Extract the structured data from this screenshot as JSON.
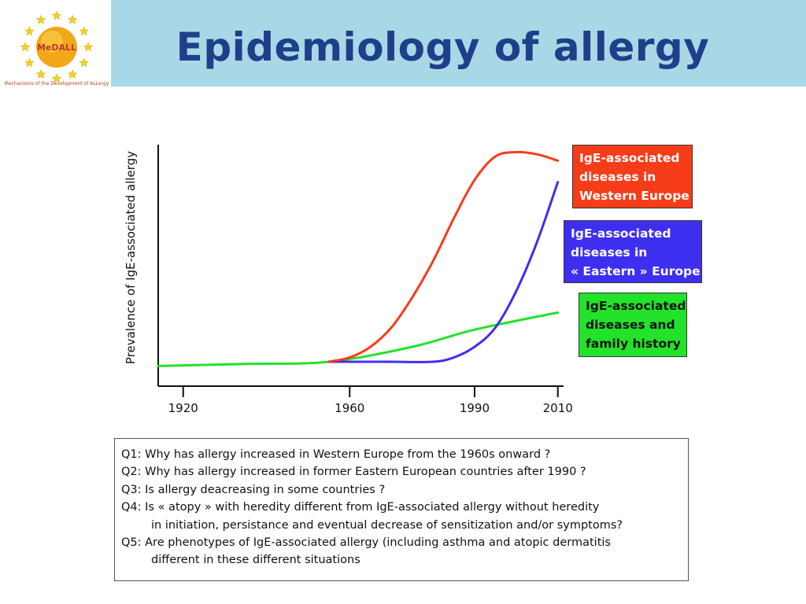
{
  "title": "Epidemiology of allergy",
  "logo": {
    "name": "MeDALL",
    "caption": "Mechanisms of the Development of ALLergy",
    "colors": {
      "stars": "#f2d31b",
      "sun": "#f0a818",
      "text": "#c0392b"
    }
  },
  "chart_data": {
    "type": "line",
    "ylabel": "Prevalence of IgE-associated allergy",
    "xlabel": "",
    "xticks": [
      1920,
      1960,
      1990,
      2010
    ],
    "xlim": [
      1914,
      2011
    ],
    "ylim": [
      0,
      100
    ],
    "series": [
      {
        "name": "IgE-associated diseases in Western Europe",
        "color": "#f73c1a",
        "x": [
          1955,
          1960,
          1965,
          1970,
          1975,
          1980,
          1985,
          1990,
          1995,
          2000,
          2005,
          2010
        ],
        "y": [
          0,
          2,
          7,
          16,
          30,
          47,
          67,
          85,
          96,
          98,
          97,
          94
        ]
      },
      {
        "name": "IgE-associated diseases in « Eastern » Europe",
        "color": "#3e2ff0",
        "x": [
          1955,
          1960,
          1970,
          1980,
          1985,
          1990,
          1995,
          2000,
          2005,
          2010
        ],
        "y": [
          0,
          0,
          0,
          0,
          2,
          7,
          16,
          33,
          56,
          84
        ]
      },
      {
        "name": "IgE-associated diseases and family history",
        "color": "#22e32a",
        "x": [
          1914,
          1935,
          1955,
          1975,
          1990,
          2010
        ],
        "y": [
          -2,
          -1,
          0,
          7,
          15,
          23
        ]
      }
    ]
  },
  "legend": {
    "red": [
      "IgE-associated",
      "diseases in",
      "Western Europe"
    ],
    "blue": [
      "IgE-associated",
      "diseases in",
      "« Eastern » Europe"
    ],
    "green": [
      "IgE-associated",
      "diseases and",
      "family history"
    ]
  },
  "questions": [
    "Q1: Why has allergy increased in Western Europe from the 1960s onward ?",
    "Q2: Why has allergy increased in former Eastern European countries after 1990 ?",
    "Q3: Is allergy deacreasing in some countries ?",
    "Q4: Is « atopy » with heredity different from IgE-associated allergy without heredity",
    "in initiation, persistance and eventual decrease of sensitization and/or symptoms?",
    "Q5: Are phenotypes of IgE-associated allergy (including asthma and atopic dermatitis",
    "different in these different situations"
  ]
}
